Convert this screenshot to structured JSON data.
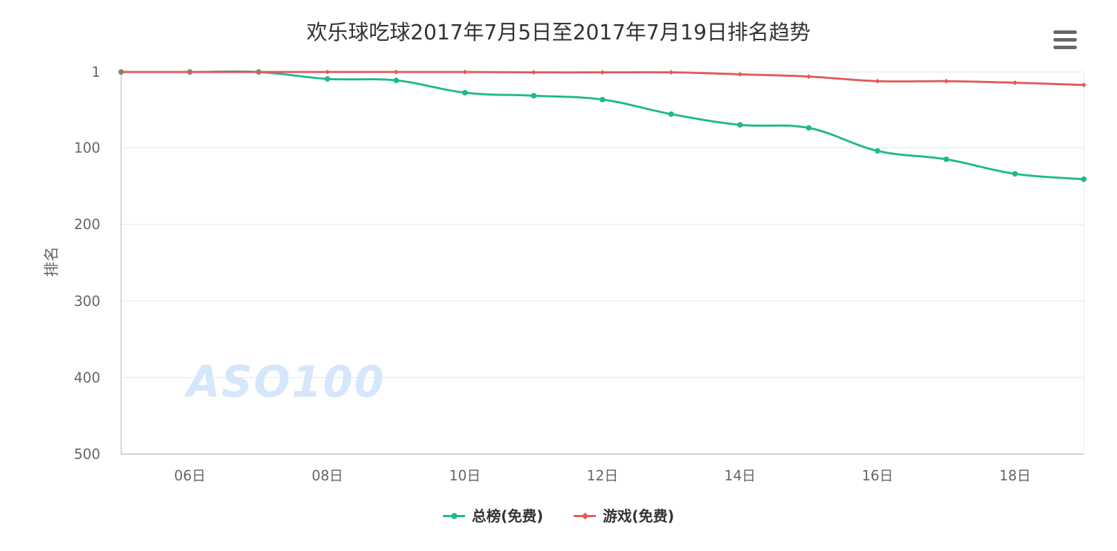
{
  "title": "欢乐球吃球2017年7月5日至2017年7月19日排名趋势",
  "watermark": "ASO100",
  "menu": {
    "icon": "hamburger-menu-icon"
  },
  "chart_data": {
    "type": "line",
    "title": "欢乐球吃球2017年7月5日至2017年7月19日排名趋势",
    "x": [
      5,
      6,
      7,
      8,
      9,
      10,
      11,
      12,
      13,
      14,
      15,
      16,
      17,
      18,
      19
    ],
    "xtick_labels": [
      "06日",
      "08日",
      "10日",
      "12日",
      "14日",
      "16日",
      "18日"
    ],
    "xticks": [
      6,
      8,
      10,
      12,
      14,
      16,
      18
    ],
    "xlim": [
      5,
      19
    ],
    "ylabel": "排名",
    "ylim": [
      1,
      500
    ],
    "y_reversed": true,
    "yticks": [
      1,
      100,
      200,
      300,
      400,
      500
    ],
    "ytick_labels": [
      "1",
      "100",
      "200",
      "300",
      "400",
      "500"
    ],
    "grid": true,
    "legend": "bottom-center",
    "series": [
      {
        "name": "总榜(免费)",
        "color": "#1fb98a",
        "marker": "circle",
        "values": [
          1,
          1,
          1,
          10,
          12,
          28,
          32,
          37,
          56,
          70,
          74,
          104,
          115,
          134,
          141
        ]
      },
      {
        "name": "游戏(免费)",
        "color": "#e35959",
        "marker": "diamond",
        "values": [
          1,
          1,
          1,
          1,
          1,
          1,
          1.5,
          1.5,
          1.5,
          4,
          7,
          13,
          13,
          15,
          18
        ]
      }
    ]
  }
}
